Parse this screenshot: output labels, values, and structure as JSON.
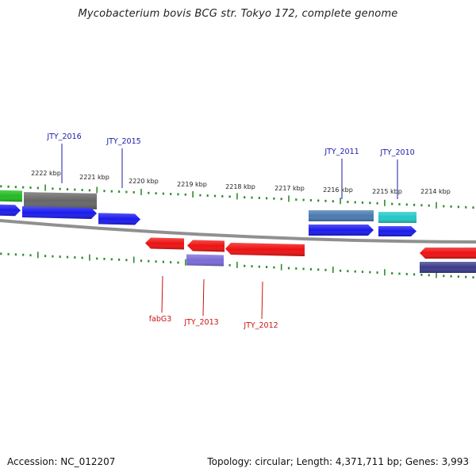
{
  "title": "Mycobacterium bovis BCG str. Tokyo 172, complete genome",
  "footer": {
    "accession": "Accession: NC_012207",
    "summary": "Topology: circular; Length: 4,371,711 bp; Genes: 3,993"
  },
  "ruler": {
    "labels": [
      "2222 kbp",
      "2221 kbp",
      "2220 kbp",
      "2219 kbp",
      "2218 kbp",
      "2217 kbp",
      "2216 kbp",
      "2215 kbp",
      "2214 kbp"
    ]
  },
  "genes": {
    "top_labels": [
      "JTY_2016",
      "JTY_2015",
      "JTY_2011",
      "JTY_2010"
    ],
    "bottom_labels": [
      "fabG3",
      "JTY_2013",
      "JTY_2012"
    ]
  },
  "colors": {
    "axis": "#909090",
    "tick": "#2e8b2e",
    "forward_gene": "#1a1aee",
    "reverse_gene": "#ee1111",
    "top_label": "#1a1aaa",
    "bottom_label": "#cc1111",
    "green_feature": "#22bb22",
    "gray_feature": "#666666",
    "steel_feature": "#4a7ab0",
    "cyan_feature": "#22c8c8",
    "lavender_feature": "#7a6ad8",
    "navy_feature": "#3a3a8a"
  }
}
